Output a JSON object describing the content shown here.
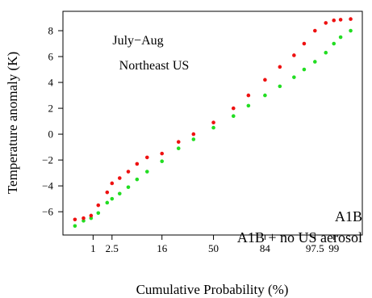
{
  "chart_data": {
    "type": "scatter",
    "title": "",
    "xlabel": "Cumulative Probability (%)",
    "ylabel": "Temperature anomaly (K)",
    "annotation_lines": [
      "July−Aug",
      "Northeast US"
    ],
    "x_scale": "normal-probability",
    "xlim": [
      0.18,
      99.8
    ],
    "ylim": [
      -7.8,
      9.5
    ],
    "x_ticks": [
      1,
      2.5,
      16,
      50,
      84,
      97.5,
      99
    ],
    "x_tick_labels": [
      "1",
      "2.5",
      "16",
      "50",
      "84",
      "97.5",
      "99"
    ],
    "y_ticks": [
      -6,
      -4,
      -2,
      0,
      2,
      4,
      6,
      8
    ],
    "y_tick_labels": [
      "−6",
      "−4",
      "−2",
      "0",
      "2",
      "4",
      "6",
      "8"
    ],
    "grid": false,
    "legend_position": "bottom-right",
    "colors": {
      "A1B": "#22dd22",
      "A1B + no US aerosol": "#ee1111"
    },
    "series": [
      {
        "name": "A1B",
        "x": [
          0.37,
          0.6,
          0.9,
          1.3,
          2.0,
          2.5,
          3.5,
          5,
          7,
          10,
          16,
          25,
          35,
          50,
          65,
          75,
          84,
          90,
          94,
          96,
          97.5,
          98.5,
          99,
          99.3,
          99.6
        ],
        "y": [
          -7.1,
          -6.7,
          -6.5,
          -6.1,
          -5.3,
          -5.0,
          -4.6,
          -4.1,
          -3.5,
          -2.9,
          -2.1,
          -1.1,
          -0.4,
          0.5,
          1.4,
          2.2,
          3.0,
          3.7,
          4.4,
          5.0,
          5.6,
          6.3,
          7.0,
          7.5,
          8.0
        ]
      },
      {
        "name": "A1B + no US aerosol",
        "x": [
          0.37,
          0.6,
          0.9,
          1.3,
          2.0,
          2.5,
          3.5,
          5,
          7,
          10,
          16,
          25,
          35,
          50,
          65,
          75,
          84,
          90,
          94,
          96,
          97.5,
          98.5,
          99,
          99.3,
          99.6
        ],
        "y": [
          -6.6,
          -6.5,
          -6.3,
          -5.5,
          -4.5,
          -3.8,
          -3.4,
          -2.9,
          -2.3,
          -1.8,
          -1.5,
          -0.6,
          0.0,
          0.9,
          2.0,
          3.0,
          4.2,
          5.2,
          6.1,
          7.0,
          8.0,
          8.6,
          8.8,
          8.85,
          8.9
        ]
      }
    ]
  }
}
